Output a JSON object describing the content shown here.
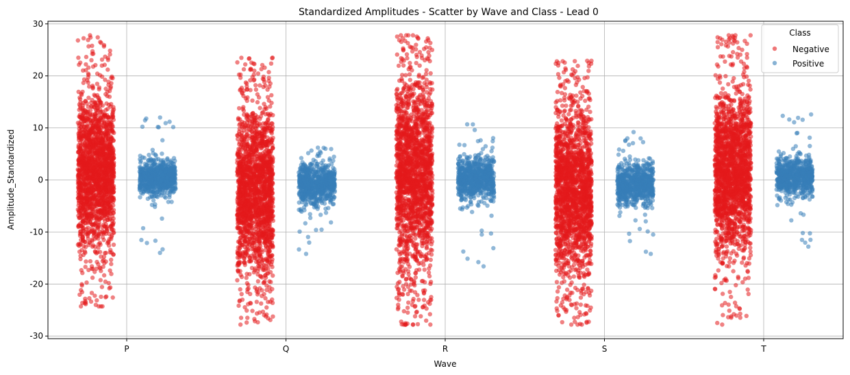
{
  "chart_data": {
    "type": "scatter",
    "title": "Standardized Amplitudes - Scatter by Wave and Class - Lead 0",
    "xlabel": "Wave",
    "ylabel": "Amplitude_Standardized",
    "categories": [
      "P",
      "Q",
      "R",
      "S",
      "T"
    ],
    "ylim": [
      -30.5,
      30.5
    ],
    "yticks": [
      -30,
      -20,
      -10,
      0,
      10,
      20,
      30
    ],
    "grid": true,
    "legend": {
      "title": "Class",
      "placement": "top-right",
      "entries": [
        "Negative",
        "Positive"
      ]
    },
    "series": [
      {
        "name": "Negative",
        "color": "#e41a1c",
        "distribution": [
          {
            "category": "P",
            "dense_range": [
              -14,
              17
            ],
            "min": -24.3,
            "max": 27.8
          },
          {
            "category": "Q",
            "dense_range": [
              -19,
              15
            ],
            "min": -27.8,
            "max": 23.5
          },
          {
            "category": "R",
            "dense_range": [
              -18,
              20
            ],
            "min": -27.8,
            "max": 27.8
          },
          {
            "category": "S",
            "dense_range": [
              -19,
              15
            ],
            "min": -27.8,
            "max": 22.9
          },
          {
            "category": "T",
            "dense_range": [
              -15,
              18
            ],
            "min": -27.8,
            "max": 27.8
          }
        ]
      },
      {
        "name": "Positive",
        "color": "#377eb8",
        "distribution": [
          {
            "category": "P",
            "dense_range": [
              -3,
              4
            ],
            "min": -14.0,
            "max": 12.0
          },
          {
            "category": "Q",
            "dense_range": [
              -5,
              3.5
            ],
            "min": -14.2,
            "max": 6.2
          },
          {
            "category": "R",
            "dense_range": [
              -4,
              4.5
            ],
            "min": -16.6,
            "max": 10.7
          },
          {
            "category": "S",
            "dense_range": [
              -5,
              3.5
            ],
            "min": -14.2,
            "max": 9.2
          },
          {
            "category": "T",
            "dense_range": [
              -3,
              4.5
            ],
            "min": -12.8,
            "max": 12.6
          }
        ]
      }
    ]
  }
}
